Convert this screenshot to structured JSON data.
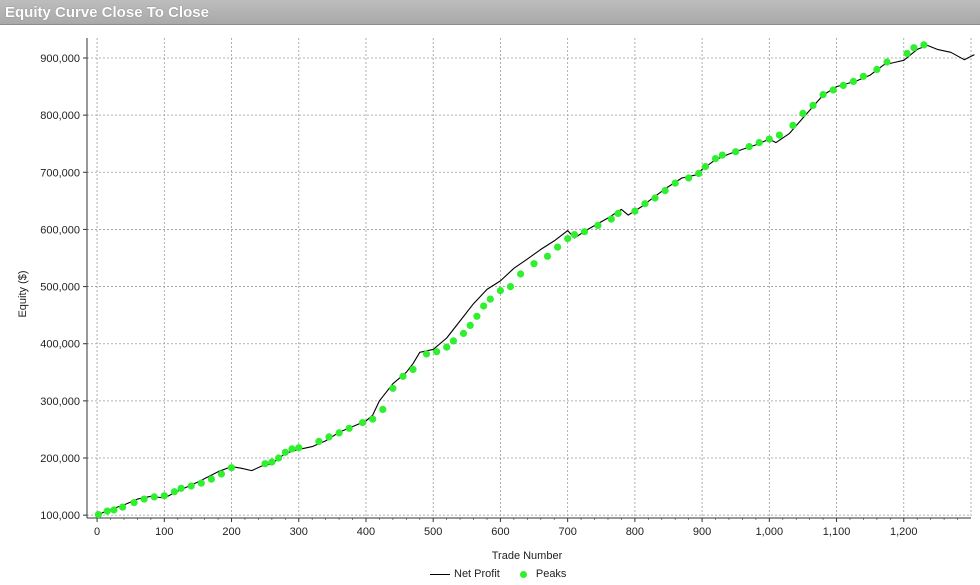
{
  "window": {
    "title": "Equity Curve Close To Close"
  },
  "colors": {
    "line": "#000000",
    "peaks": "#2ef02e",
    "grid": "#9a9a9a",
    "titlebar": "#b3b3b3"
  },
  "chart_data": {
    "type": "line",
    "title": "",
    "xlabel": "Trade Number",
    "ylabel": "Equity ($)",
    "xlim": [
      -15,
      1300
    ],
    "ylim": [
      95000,
      935000
    ],
    "x_ticks": [
      0,
      100,
      200,
      300,
      400,
      500,
      600,
      700,
      800,
      900,
      1000,
      1100,
      1200
    ],
    "x_tick_labels": [
      "0",
      "100",
      "200",
      "300",
      "400",
      "500",
      "600",
      "700",
      "800",
      "900",
      "1,000",
      "1,100",
      "1,200"
    ],
    "y_ticks": [
      100000,
      200000,
      300000,
      400000,
      500000,
      600000,
      700000,
      800000,
      900000
    ],
    "y_tick_labels": [
      "100,000",
      "200,000",
      "300,000",
      "400,000",
      "500,000",
      "600,000",
      "700,000",
      "800,000",
      "900,000"
    ],
    "grid": true,
    "legend": {
      "placement": "bottom-center",
      "entries": [
        "Net Profit",
        "Peaks"
      ]
    },
    "series": [
      {
        "name": "Net Profit",
        "style": "line",
        "x": [
          0,
          20,
          40,
          60,
          80,
          100,
          120,
          150,
          180,
          200,
          215,
          230,
          245,
          260,
          280,
          300,
          320,
          340,
          360,
          380,
          390,
          400,
          410,
          420,
          440,
          460,
          470,
          480,
          500,
          520,
          540,
          560,
          580,
          600,
          620,
          640,
          660,
          680,
          700,
          710,
          730,
          760,
          780,
          790,
          810,
          830,
          850,
          870,
          890,
          900,
          920,
          940,
          960,
          980,
          1000,
          1010,
          1030,
          1050,
          1080,
          1100,
          1130,
          1150,
          1170,
          1185,
          1200,
          1220,
          1235,
          1250,
          1270,
          1290,
          1305
        ],
        "y": [
          100000,
          110000,
          118000,
          128000,
          133000,
          130000,
          142000,
          158000,
          176000,
          185000,
          182000,
          178000,
          186000,
          190000,
          208000,
          215000,
          220000,
          230000,
          245000,
          255000,
          260000,
          265000,
          275000,
          300000,
          330000,
          350000,
          365000,
          385000,
          390000,
          410000,
          440000,
          470000,
          495000,
          510000,
          532000,
          548000,
          565000,
          580000,
          598000,
          585000,
          600000,
          620000,
          635000,
          625000,
          640000,
          658000,
          675000,
          690000,
          695000,
          705000,
          722000,
          732000,
          740000,
          748000,
          758000,
          752000,
          768000,
          795000,
          835000,
          850000,
          860000,
          870000,
          888000,
          892000,
          896000,
          915000,
          922000,
          915000,
          910000,
          897000,
          906000
        ]
      },
      {
        "name": "Peaks",
        "style": "scatter",
        "x": [
          2,
          15,
          25,
          38,
          55,
          70,
          85,
          100,
          115,
          125,
          140,
          155,
          170,
          185,
          200,
          250,
          260,
          270,
          280,
          290,
          300,
          330,
          345,
          360,
          375,
          395,
          410,
          425,
          440,
          455,
          470,
          490,
          505,
          520,
          530,
          545,
          555,
          565,
          575,
          585,
          600,
          615,
          630,
          650,
          670,
          685,
          700,
          710,
          725,
          745,
          765,
          775,
          800,
          815,
          830,
          845,
          860,
          880,
          895,
          905,
          920,
          930,
          950,
          970,
          985,
          1000,
          1015,
          1035,
          1050,
          1065,
          1080,
          1095,
          1110,
          1125,
          1140,
          1160,
          1175,
          1205,
          1215,
          1230
        ],
        "y": [
          101000,
          107000,
          109000,
          114000,
          122000,
          128000,
          132000,
          134000,
          141000,
          147000,
          151000,
          156000,
          163000,
          172000,
          183000,
          190000,
          193000,
          200000,
          210000,
          216000,
          218000,
          229000,
          237000,
          244000,
          252000,
          262000,
          268000,
          285000,
          322000,
          343000,
          355000,
          382000,
          386000,
          394000,
          405000,
          418000,
          432000,
          448000,
          466000,
          478000,
          493000,
          500000,
          522000,
          540000,
          553000,
          569000,
          584000,
          591000,
          596000,
          607000,
          618000,
          628000,
          632000,
          645000,
          655000,
          668000,
          681000,
          690000,
          698000,
          710000,
          724000,
          730000,
          736000,
          745000,
          752000,
          758000,
          765000,
          782000,
          803000,
          817000,
          836000,
          844000,
          852000,
          859000,
          868000,
          880000,
          893000,
          908000,
          918000,
          923000
        ]
      }
    ]
  }
}
